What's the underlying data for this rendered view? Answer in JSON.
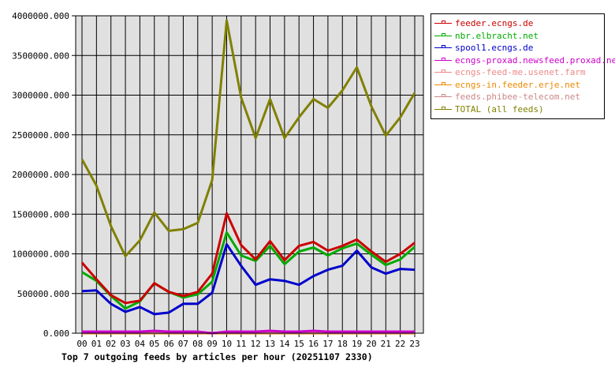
{
  "chart_data": {
    "type": "line",
    "title": "Top 7 outgoing feeds by articles per hour (20251107 2330)",
    "xlabel": "",
    "ylabel": "",
    "ylim": [
      0,
      4000000
    ],
    "grid": true,
    "legend_position": "right",
    "x": [
      "00",
      "01",
      "02",
      "03",
      "04",
      "05",
      "06",
      "07",
      "08",
      "09",
      "10",
      "11",
      "12",
      "13",
      "14",
      "15",
      "16",
      "17",
      "18",
      "19",
      "20",
      "21",
      "22",
      "23"
    ],
    "y_ticks": [
      "0.000",
      "500000.000",
      "1000000.000",
      "1500000.000",
      "2000000.000",
      "2500000.000",
      "3000000.000",
      "3500000.000",
      "4000000.000"
    ],
    "series": [
      {
        "name": "feeder.ecngs.de",
        "color": "#cc0000",
        "values": [
          890000,
          680000,
          480000,
          380000,
          410000,
          630000,
          520000,
          470000,
          520000,
          750000,
          1510000,
          1110000,
          930000,
          1160000,
          920000,
          1100000,
          1150000,
          1040000,
          1100000,
          1180000,
          1030000,
          900000,
          1000000,
          1140000
        ]
      },
      {
        "name": "nbr.elbracht.net",
        "color": "#00aa00",
        "values": [
          770000,
          660000,
          470000,
          310000,
          400000,
          630000,
          520000,
          450000,
          490000,
          650000,
          1270000,
          980000,
          910000,
          1100000,
          870000,
          1030000,
          1080000,
          980000,
          1070000,
          1130000,
          990000,
          860000,
          930000,
          1090000
        ]
      },
      {
        "name": "spool1.ecngs.de",
        "color": "#0000cc",
        "values": [
          530000,
          540000,
          370000,
          270000,
          330000,
          240000,
          260000,
          370000,
          370000,
          510000,
          1120000,
          850000,
          610000,
          680000,
          660000,
          610000,
          720000,
          800000,
          850000,
          1040000,
          830000,
          750000,
          810000,
          800000
        ]
      },
      {
        "name": "ecngs-proxad.newsfeed.proxad.net",
        "color": "#cc00cc",
        "values": [
          20000,
          20000,
          20000,
          20000,
          20000,
          30000,
          20000,
          20000,
          20000,
          0,
          20000,
          20000,
          20000,
          30000,
          20000,
          20000,
          30000,
          20000,
          20000,
          20000,
          20000,
          20000,
          20000,
          20000
        ]
      },
      {
        "name": "ecngs-feed-me.usenet.farm",
        "color": "#ee8888",
        "values": [
          5000,
          5000,
          5000,
          5000,
          5000,
          5000,
          5000,
          5000,
          5000,
          5000,
          5000,
          5000,
          5000,
          5000,
          5000,
          5000,
          5000,
          5000,
          5000,
          5000,
          5000,
          5000,
          5000,
          5000
        ]
      },
      {
        "name": "ecngs-in.feeder.erje.net",
        "color": "#ee8800",
        "values": [
          0,
          0,
          0,
          0,
          0,
          0,
          0,
          0,
          0,
          0,
          0,
          0,
          0,
          0,
          0,
          0,
          0,
          0,
          0,
          0,
          0,
          0,
          0,
          0
        ]
      },
      {
        "name": "feeds.phibee-telecom.net",
        "color": "#cc8888",
        "values": [
          5000,
          5000,
          5000,
          5000,
          5000,
          5000,
          5000,
          5000,
          5000,
          5000,
          5000,
          5000,
          5000,
          5000,
          5000,
          5000,
          5000,
          5000,
          5000,
          5000,
          5000,
          5000,
          5000,
          5000
        ]
      },
      {
        "name": "TOTAL (all feeds)",
        "color": "#808000",
        "values": [
          2190000,
          1860000,
          1350000,
          970000,
          1170000,
          1520000,
          1290000,
          1310000,
          1390000,
          1930000,
          3940000,
          2970000,
          2460000,
          2950000,
          2460000,
          2720000,
          2950000,
          2840000,
          3060000,
          3350000,
          2860000,
          2490000,
          2720000,
          3030000
        ]
      }
    ]
  },
  "legend": {
    "items": [
      {
        "label": "feeder.ecngs.de",
        "color": "#cc0000"
      },
      {
        "label": "nbr.elbracht.net",
        "color": "#00aa00"
      },
      {
        "label": "spool1.ecngs.de",
        "color": "#0000cc"
      },
      {
        "label": "ecngs-proxad.newsfeed.proxad.net",
        "color": "#cc00cc"
      },
      {
        "label": "ecngs-feed-me.usenet.farm",
        "color": "#ee8888"
      },
      {
        "label": "ecngs-in.feeder.erje.net",
        "color": "#ee8800"
      },
      {
        "label": "feeds.phibee-telecom.net",
        "color": "#cc8888"
      },
      {
        "label": "TOTAL (all feeds)",
        "color": "#808000"
      }
    ]
  },
  "colors": {
    "plot_background": "#e0e0e0",
    "grid": "#000000",
    "page_background": "#ffffff"
  }
}
